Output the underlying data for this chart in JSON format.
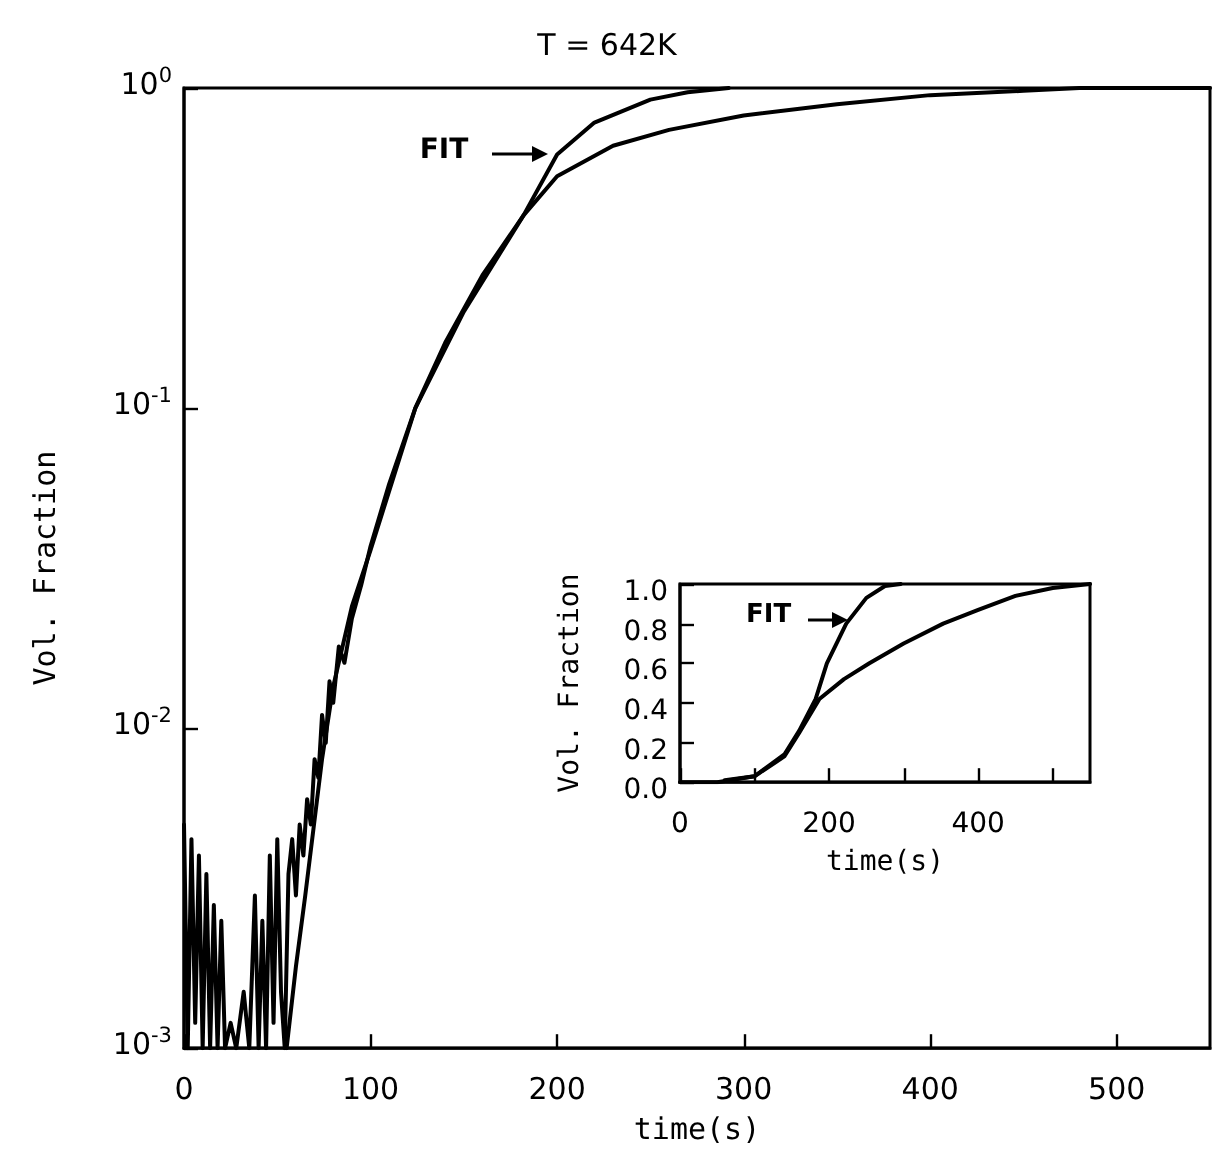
{
  "chart_data": [
    {
      "type": "line",
      "title": "T = 642K",
      "xlabel": "time(s)",
      "ylabel": "Vol. Fraction",
      "log": "y",
      "marker": "none",
      "line_style": "solid",
      "xlim": [
        0,
        550
      ],
      "xticks": [
        0,
        100,
        200,
        300,
        400,
        500
      ],
      "ylim": [
        0.001,
        1
      ],
      "yticks": [
        {
          "value": 0.001,
          "label": "10$^{-3}$"
        },
        {
          "value": 0.01,
          "label": "10$^{-2}$"
        },
        {
          "value": 0.1,
          "label": "10$^{-1}$"
        },
        {
          "value": 1,
          "label": "10$^{0}$"
        }
      ],
      "annotations": [
        {
          "text": "FIT",
          "x": 196,
          "y": 0.62
        }
      ],
      "series": [
        {
          "color": "#000000",
          "x": [
            0,
            2,
            4,
            6,
            8,
            10,
            12,
            14,
            16,
            18,
            20,
            22,
            25,
            28,
            32,
            35,
            38,
            40,
            42,
            44,
            46,
            48,
            50,
            52,
            54,
            56,
            58,
            60,
            62,
            64,
            66,
            68,
            70,
            72,
            74,
            76,
            78,
            80,
            83,
            86,
            90,
            95,
            100,
            110,
            124,
            140,
            160,
            182,
            200,
            230,
            260,
            300,
            350,
            400,
            450,
            480,
            550
          ],
          "values": [
            0.005,
            0.001,
            0.0045,
            0.0012,
            0.004,
            0.001,
            0.0035,
            0.001,
            0.0028,
            0.001,
            0.0025,
            0.001,
            0.0012,
            0.001,
            0.0015,
            0.001,
            0.003,
            0.001,
            0.0025,
            0.001,
            0.004,
            0.0012,
            0.0045,
            0.0015,
            0.001,
            0.0035,
            0.0045,
            0.003,
            0.005,
            0.004,
            0.006,
            0.005,
            0.008,
            0.007,
            0.011,
            0.009,
            0.014,
            0.012,
            0.018,
            0.016,
            0.022,
            0.028,
            0.037,
            0.058,
            0.1,
            0.16,
            0.26,
            0.4,
            0.53,
            0.66,
            0.74,
            0.82,
            0.89,
            0.95,
            0.98,
            1.0,
            1.0
          ]
        },
        {
          "color": "#000000",
          "x": [
            55,
            60,
            65,
            74,
            80,
            90,
            100,
            124,
            150,
            182,
            200,
            220,
            250,
            270,
            292
          ],
          "values": [
            0.001,
            0.0018,
            0.003,
            0.008,
            0.0135,
            0.024,
            0.036,
            0.1,
            0.2,
            0.4,
            0.62,
            0.78,
            0.92,
            0.97,
            1.0
          ]
        }
      ]
    },
    {
      "type": "line",
      "xlabel": "time(s)",
      "ylabel": "Vol. Fraction",
      "marker": "none",
      "line_style": "solid",
      "xlim": [
        0,
        550
      ],
      "xticks": [
        0,
        {
          "value": 100,
          "label": null
        },
        200,
        {
          "value": 300,
          "label": null
        },
        400,
        {
          "value": 500,
          "label": null
        }
      ],
      "ylim": [
        0,
        1
      ],
      "yticks": [
        {
          "value": 0,
          "label": "0.0"
        },
        {
          "value": 0.2,
          "label": "0.2"
        },
        {
          "value": 0.4,
          "label": "0.4"
        },
        {
          "value": 0.6,
          "label": "0.6"
        },
        {
          "value": 0.8,
          "label": "0.8"
        },
        {
          "value": 1,
          "label": "1.0"
        }
      ],
      "annotations": [
        {
          "text": "FIT",
          "x": 228,
          "y": 0.82
        }
      ],
      "series": [
        {
          "color": "#000000",
          "x": [
            0,
            50,
            100,
            140,
            160,
            187,
            220,
            254,
            300,
            353,
            400,
            450,
            500,
            550
          ],
          "values": [
            0,
            0,
            0.03,
            0.13,
            0.25,
            0.42,
            0.52,
            0.6,
            0.7,
            0.8,
            0.87,
            0.94,
            0.98,
            1.0
          ]
        },
        {
          "color": "#000000",
          "x": [
            60,
            100,
            140,
            160,
            182,
            197,
            223,
            250,
            275,
            296
          ],
          "values": [
            0.01,
            0.03,
            0.14,
            0.26,
            0.42,
            0.6,
            0.8,
            0.93,
            0.99,
            1.0
          ]
        }
      ]
    }
  ]
}
